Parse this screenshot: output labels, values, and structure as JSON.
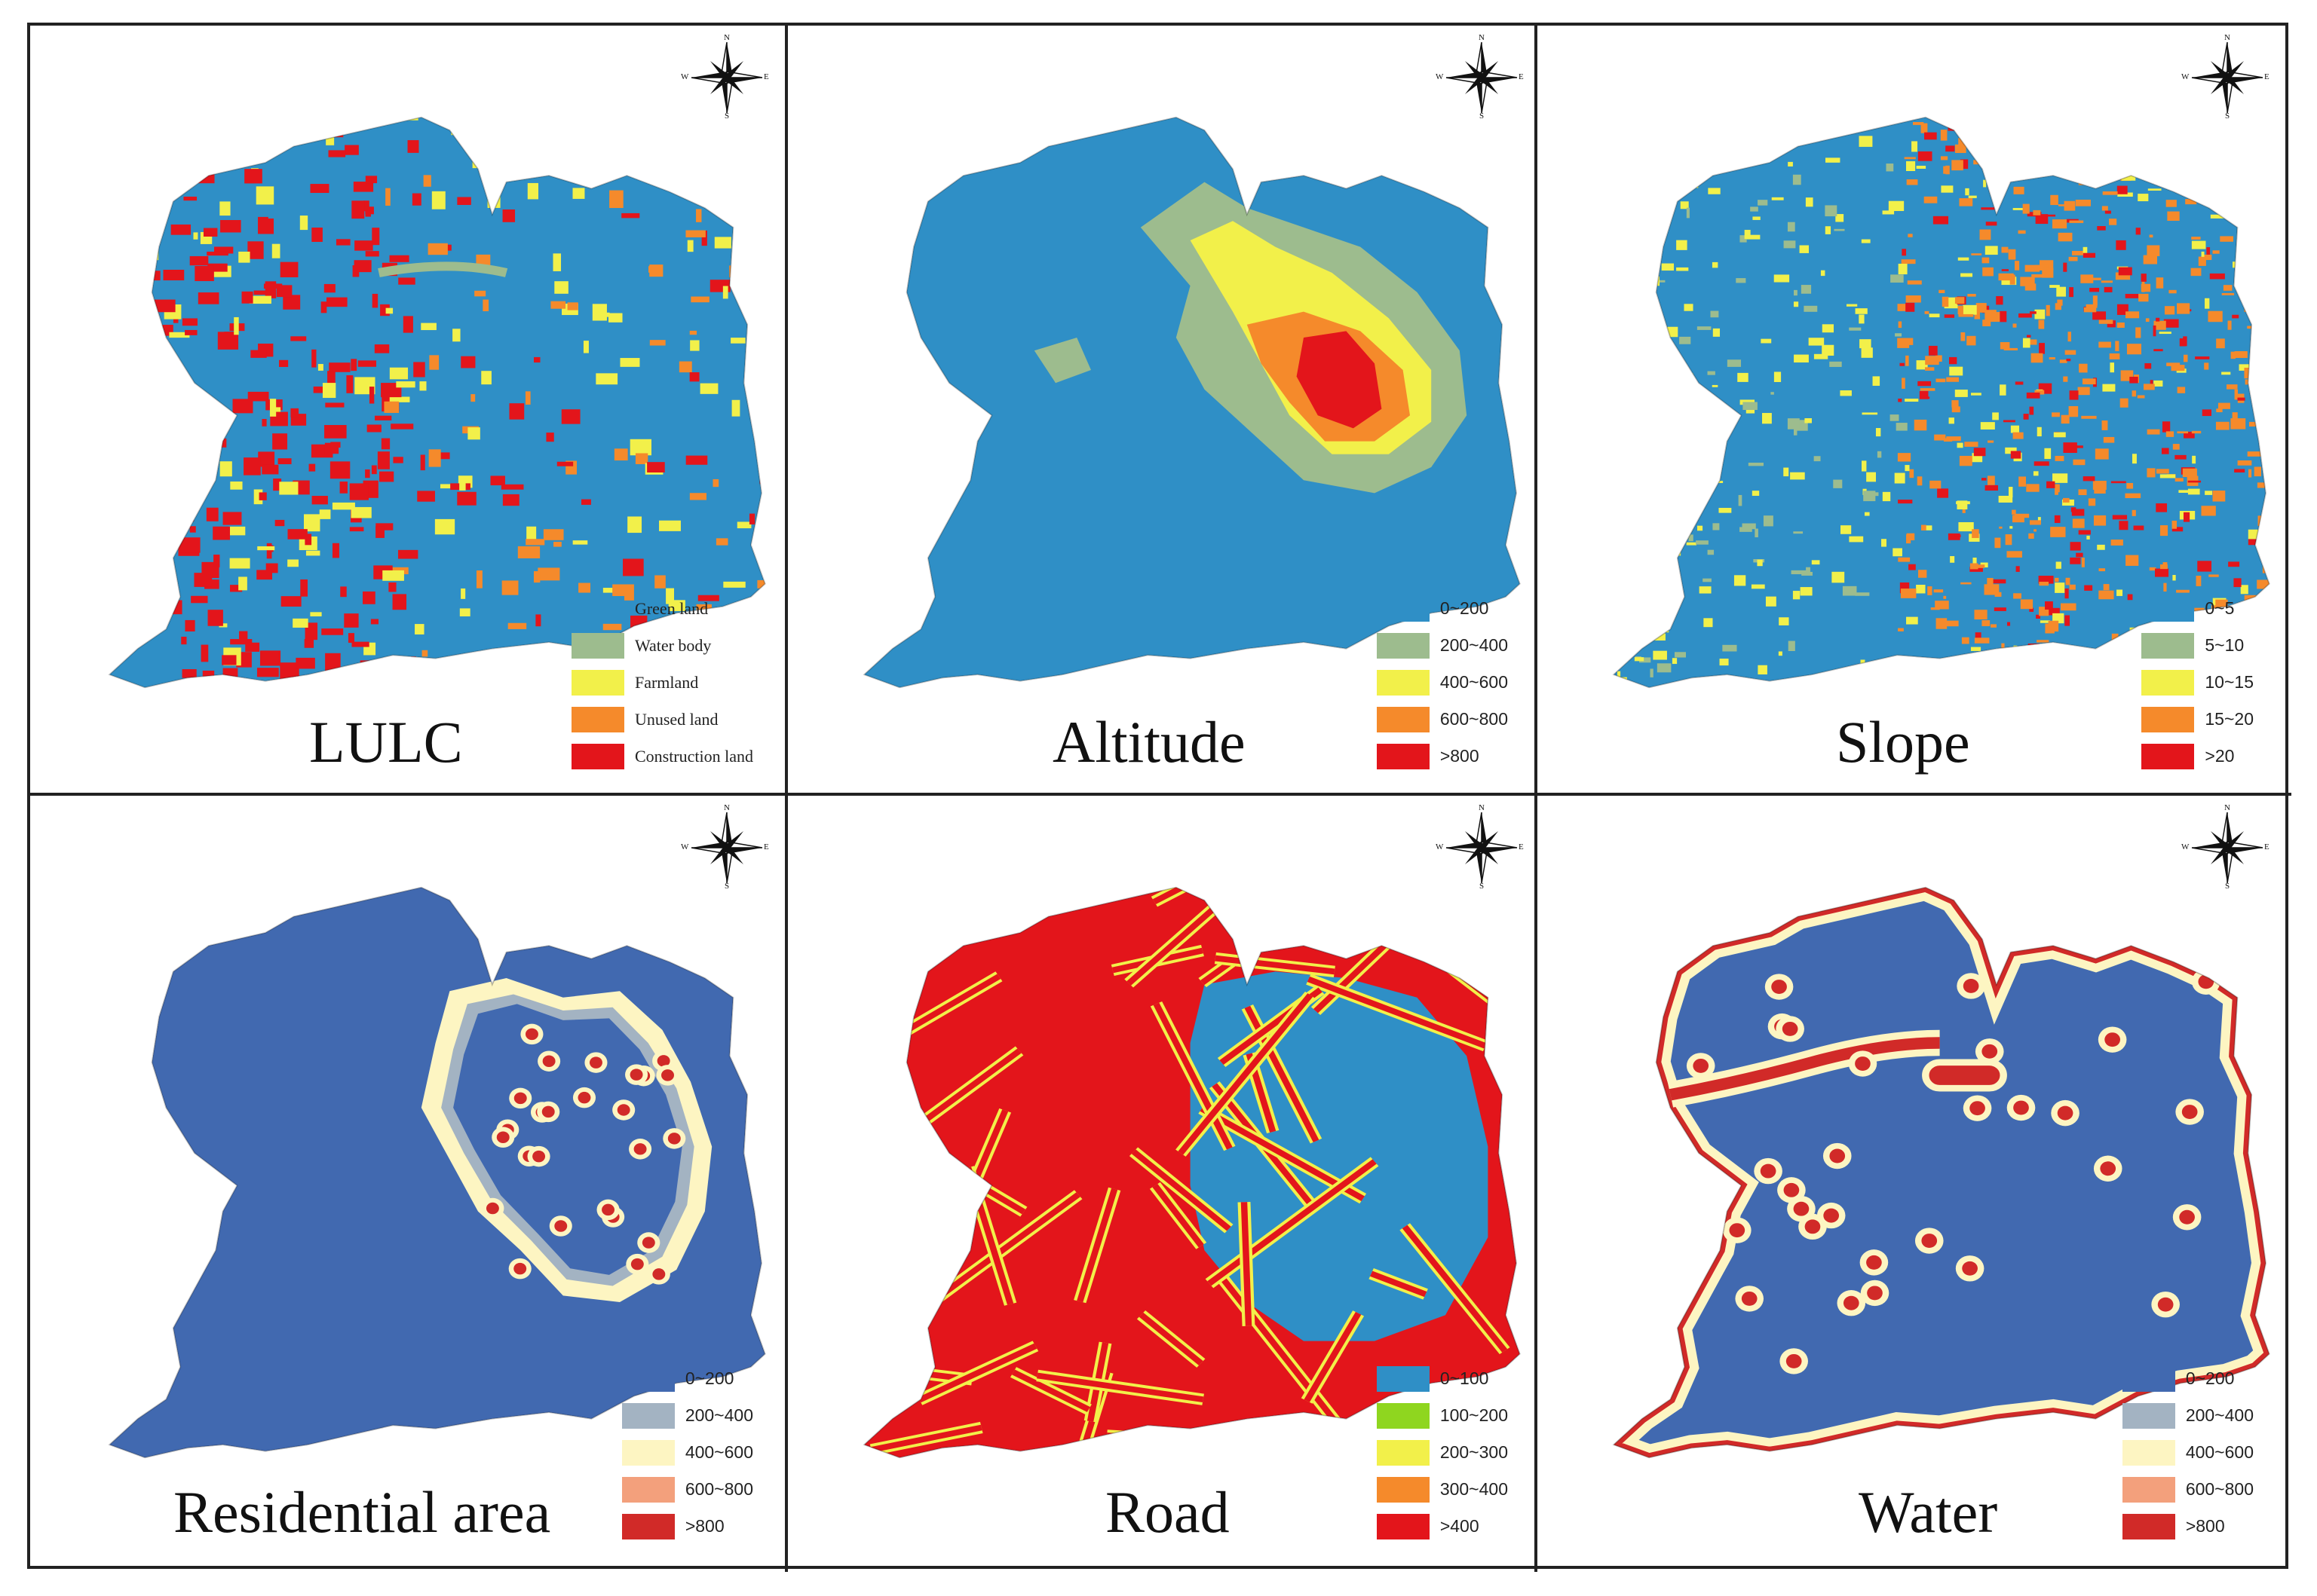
{
  "panels": [
    {
      "title": "LULC",
      "legend_font": "serif",
      "legend": [
        {
          "label": "Green land",
          "color": "#2f8fc6"
        },
        {
          "label": "Water body",
          "color": "#9dbc8e"
        },
        {
          "label": "Farmland",
          "color": "#f2f04a"
        },
        {
          "label": "Unused land",
          "color": "#f58a2b"
        },
        {
          "label": "Construction land",
          "color": "#e3151b"
        }
      ]
    },
    {
      "title": "Altitude",
      "legend_font": "sans",
      "legend": [
        {
          "label": "0~200",
          "color": "#2f8fc6"
        },
        {
          "label": "200~400",
          "color": "#9dbc8e"
        },
        {
          "label": "400~600",
          "color": "#f2f04a"
        },
        {
          "label": "600~800",
          "color": "#f58a2b"
        },
        {
          "label": ">800",
          "color": "#e3151b"
        }
      ]
    },
    {
      "title": "Slope",
      "legend_font": "sans",
      "legend": [
        {
          "label": "0~5",
          "color": "#2f8fc6"
        },
        {
          "label": "5~10",
          "color": "#9dbc8e"
        },
        {
          "label": "10~15",
          "color": "#f2f04a"
        },
        {
          "label": "15~20",
          "color": "#f58a2b"
        },
        {
          "label": ">20",
          "color": "#e3151b"
        }
      ]
    },
    {
      "title": "Residential area",
      "legend_font": "sans",
      "legend": [
        {
          "label": "0~200",
          "color": "#4169b0"
        },
        {
          "label": "200~400",
          "color": "#a3b3c2"
        },
        {
          "label": "400~600",
          "color": "#fdf5c2"
        },
        {
          "label": "600~800",
          "color": "#f3a07c"
        },
        {
          "label": ">800",
          "color": "#d12a28"
        }
      ]
    },
    {
      "title": "Road",
      "legend_font": "sans",
      "legend": [
        {
          "label": "0~100",
          "color": "#2f8fc6"
        },
        {
          "label": "100~200",
          "color": "#8fd61f"
        },
        {
          "label": "200~300",
          "color": "#f2f04a"
        },
        {
          "label": "300~400",
          "color": "#f58a2b"
        },
        {
          "label": ">400",
          "color": "#e3151b"
        }
      ]
    },
    {
      "title": "Water",
      "legend_font": "sans",
      "legend": [
        {
          "label": "0~200",
          "color": "#4169b0"
        },
        {
          "label": "200~400",
          "color": "#a3b3c2"
        },
        {
          "label": "400~600",
          "color": "#fdf5c2"
        },
        {
          "label": "600~800",
          "color": "#f3a07c"
        },
        {
          "label": ">800",
          "color": "#d12a28"
        }
      ]
    }
  ],
  "compass": {
    "n": "N",
    "s": "S",
    "e": "E",
    "w": "W"
  }
}
